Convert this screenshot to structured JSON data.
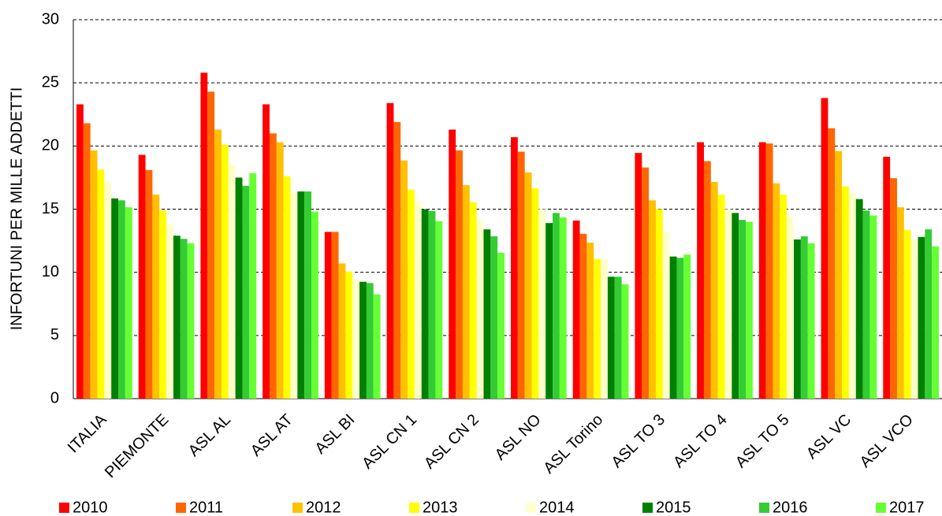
{
  "chart_data": {
    "type": "bar",
    "y_label": "INFORTUNI PER MILLE ADDETTI",
    "categories": [
      "ITALIA",
      "PIEMONTE",
      "ASL AL",
      "ASL AT",
      "ASL BI",
      "ASL CN 1",
      "ASL CN 2",
      "ASL NO",
      "ASL Torino",
      "ASL TO 3",
      "ASL TO 4",
      "ASL TO 5",
      "ASL VC",
      "ASL VCO"
    ],
    "series": [
      {
        "name": "2010",
        "color": "#ff0000",
        "values": [
          23.3,
          19.3,
          25.8,
          23.3,
          13.2,
          23.4,
          21.3,
          20.7,
          14.1,
          19.45,
          20.3,
          20.3,
          23.8,
          19.15
        ]
      },
      {
        "name": "2011",
        "color": "#ff6600",
        "values": [
          21.8,
          18.1,
          24.3,
          21.0,
          13.2,
          21.9,
          19.65,
          19.55,
          13.05,
          18.3,
          18.8,
          20.2,
          21.4,
          17.45
        ]
      },
      {
        "name": "2012",
        "color": "#ffc000",
        "values": [
          19.65,
          16.15,
          21.3,
          20.3,
          10.7,
          18.85,
          16.9,
          17.9,
          12.35,
          15.7,
          17.15,
          17.05,
          19.6,
          15.15
        ]
      },
      {
        "name": "2013",
        "color": "#ffff00",
        "values": [
          18.15,
          14.9,
          20.1,
          17.6,
          10.05,
          16.55,
          15.55,
          16.65,
          11.05,
          15.0,
          16.15,
          16.15,
          16.8,
          13.35
        ]
      },
      {
        "name": "2014",
        "color": "#ffffcc",
        "values": [
          17.2,
          13.8,
          18.5,
          16.3,
          9.4,
          15.65,
          14.1,
          15.0,
          11.0,
          13.2,
          15.0,
          14.4,
          16.3,
          12.55
        ]
      },
      {
        "name": "2015",
        "color": "#008000",
        "values": [
          15.85,
          12.9,
          17.5,
          16.4,
          9.25,
          15.0,
          13.4,
          13.9,
          9.65,
          11.25,
          14.7,
          12.6,
          15.8,
          12.8
        ]
      },
      {
        "name": "2016",
        "color": "#33cc33",
        "values": [
          15.7,
          12.65,
          16.85,
          16.4,
          9.15,
          14.85,
          12.85,
          14.7,
          9.65,
          11.15,
          14.15,
          12.85,
          14.9,
          13.4
        ]
      },
      {
        "name": "2017",
        "color": "#66ff33",
        "values": [
          15.15,
          12.3,
          17.85,
          14.8,
          8.25,
          14.05,
          11.55,
          14.35,
          9.05,
          11.4,
          14.0,
          12.3,
          14.5,
          12.05
        ]
      }
    ],
    "ylim": [
      0,
      30
    ],
    "yticks": [
      0,
      5,
      10,
      15,
      20,
      25,
      30
    ],
    "grid": true,
    "legend": "bottom"
  }
}
